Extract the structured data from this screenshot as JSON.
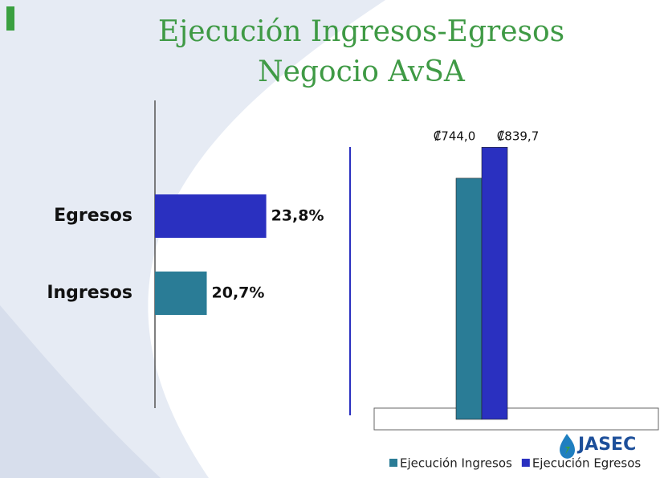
{
  "slide": {
    "title_lines": [
      "Ejecución Ingresos-Egresos",
      "Negocio AvSA"
    ],
    "logo": "JASEC"
  },
  "chart_data": [
    {
      "type": "hbar",
      "categories": [
        "Egresos",
        "Ingresos"
      ],
      "values": [
        23.8,
        20.7
      ],
      "value_labels": [
        "23,8%",
        "20,7%"
      ],
      "colors": [
        "#2a30c0",
        "#2a7c96"
      ],
      "xlim": [
        18,
        27.5
      ]
    },
    {
      "type": "bar",
      "series": [
        {
          "name": "Ejecución Ingresos",
          "color": "#2a7c96",
          "values": [
            744.0
          ],
          "value_labels": [
            "₡744,0"
          ]
        },
        {
          "name": "Ejecución Egresos",
          "color": "#2a30c0",
          "values": [
            839.7
          ],
          "value_labels": [
            "₡839,7"
          ]
        }
      ],
      "ylim": [
        0,
        880
      ],
      "legend": "bottom-right"
    }
  ]
}
